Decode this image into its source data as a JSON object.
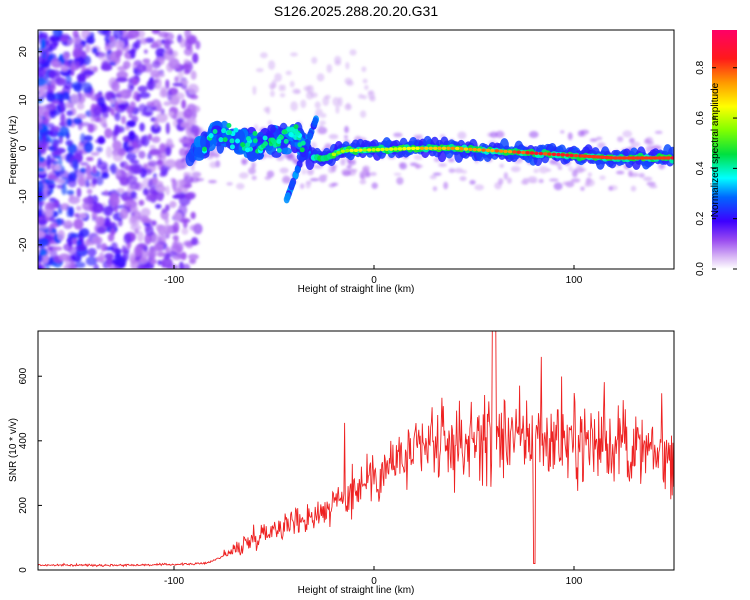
{
  "title": "S126.2025.288.20.20.G31",
  "chart_data": [
    {
      "type": "heatmap",
      "xlabel": "Height of straight line (km)",
      "ylabel": "Frequency (Hz)",
      "xlim": [
        -168,
        150
      ],
      "ylim": [
        -25,
        24.5
      ],
      "xticks": [
        -100,
        0,
        100
      ],
      "yticks": [
        -20,
        -10,
        0,
        10,
        20
      ],
      "colorbar": {
        "label": "Normalized spectral amplitude",
        "range": [
          0,
          0.95
        ],
        "ticks": [
          0.0,
          0.2,
          0.4,
          0.6,
          0.8
        ]
      },
      "trace": [
        {
          "x": -90,
          "f": -1
        },
        {
          "x": -80,
          "f": 3
        },
        {
          "x": -70,
          "f": 2
        },
        {
          "x": -60,
          "f": 1
        },
        {
          "x": -45,
          "f": 2
        },
        {
          "x": -38,
          "f": 3
        },
        {
          "x": -33,
          "f": -2
        },
        {
          "x": -25,
          "f": -2
        },
        {
          "x": -15,
          "f": -0.5
        },
        {
          "x": 0,
          "f": -0.3
        },
        {
          "x": 20,
          "f": 0
        },
        {
          "x": 40,
          "f": 0
        },
        {
          "x": 60,
          "f": -0.5
        },
        {
          "x": 80,
          "f": -1
        },
        {
          "x": 100,
          "f": -1.5
        },
        {
          "x": 120,
          "f": -2
        },
        {
          "x": 148,
          "f": -2
        }
      ]
    },
    {
      "type": "line",
      "xlabel": "Height of straight line (km)",
      "ylabel": "SNR (10 * v/v)",
      "xlim": [
        -168,
        150
      ],
      "ylim": [
        0,
        740
      ],
      "xticks": [
        -100,
        0,
        100
      ],
      "yticks": [
        0,
        200,
        400,
        600
      ],
      "series": [
        {
          "name": "SNR",
          "color": "#ee2222",
          "x": [
            -168,
            -150,
            -130,
            -110,
            -95,
            -85,
            -80,
            -75,
            -70,
            -60,
            -50,
            -40,
            -30,
            -20,
            -10,
            0,
            10,
            20,
            30,
            40,
            50,
            60,
            70,
            80,
            90,
            100,
            110,
            120,
            130,
            140,
            150
          ],
          "values": [
            15,
            15,
            15,
            16,
            18,
            20,
            30,
            45,
            60,
            100,
            130,
            150,
            170,
            200,
            250,
            300,
            330,
            360,
            380,
            390,
            400,
            410,
            410,
            410,
            405,
            400,
            395,
            390,
            370,
            355,
            360
          ]
        }
      ]
    }
  ]
}
